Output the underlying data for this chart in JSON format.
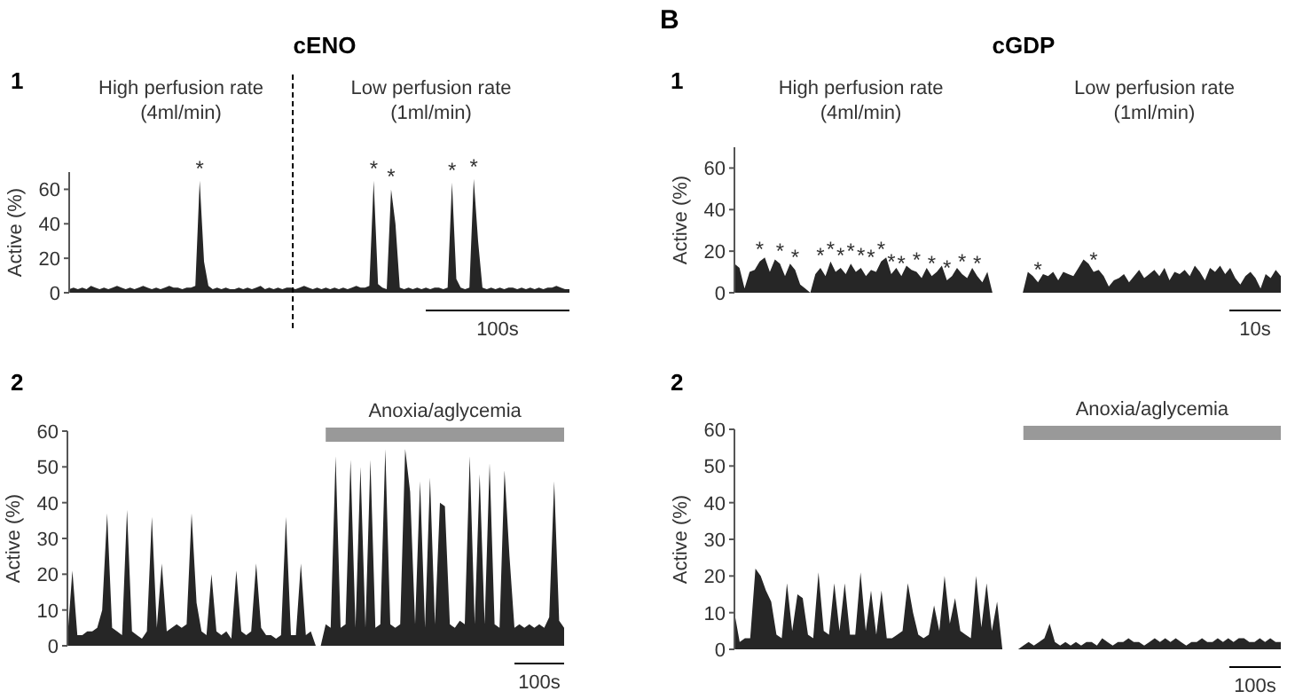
{
  "chart_data": [
    {
      "type": "area",
      "title": "cENO",
      "ylabel": "Active (%)",
      "ylim": [
        0,
        70
      ],
      "yticks": [
        0,
        20,
        40,
        60
      ],
      "tick_labels": "y",
      "categories": [
        null,
        null,
        null,
        null,
        null,
        null,
        null,
        null,
        null,
        null,
        null,
        null,
        null,
        null,
        null,
        null,
        null,
        null,
        null,
        null,
        null,
        null,
        null,
        null,
        null,
        null,
        null,
        null,
        null,
        null,
        null,
        null,
        null,
        null,
        null,
        null,
        null,
        null,
        null,
        null,
        null,
        null,
        null,
        null,
        null,
        null,
        null,
        null,
        null,
        null,
        null,
        null,
        null,
        null,
        null,
        null,
        null,
        null,
        null,
        null,
        null,
        null,
        null,
        null,
        null,
        null,
        null,
        null,
        null,
        null,
        null,
        null,
        null,
        null,
        null,
        null,
        null,
        null,
        null,
        null,
        null,
        null,
        null,
        null,
        null,
        null,
        null,
        null,
        null,
        null,
        null,
        null,
        null,
        null,
        null,
        null,
        null,
        null,
        null,
        null,
        null,
        null,
        null,
        null,
        null,
        null,
        null,
        null,
        null,
        null,
        null,
        null,
        null,
        null,
        null,
        null
      ],
      "series": [
        {
          "color": "#262626",
          "values": [
            2,
            3,
            2,
            3,
            2,
            4,
            3,
            2,
            3,
            2,
            3,
            4,
            3,
            2,
            3,
            2,
            3,
            4,
            3,
            2,
            3,
            2,
            3,
            4,
            3,
            3,
            2,
            3,
            3,
            4,
            65,
            18,
            4,
            2,
            3,
            2,
            3,
            2,
            2,
            3,
            2,
            3,
            2,
            3,
            4,
            2,
            3,
            2,
            3,
            2,
            3,
            3,
            2,
            3,
            4,
            3,
            2,
            3,
            2,
            3,
            2,
            3,
            2,
            3,
            2,
            3,
            4,
            3,
            3,
            4,
            65,
            5,
            3,
            2,
            60,
            40,
            3,
            2,
            3,
            2,
            3,
            2,
            3,
            2,
            3,
            3,
            2,
            3,
            64,
            8,
            3,
            2,
            3,
            66,
            30,
            3,
            2,
            3,
            2,
            3,
            2,
            3,
            3,
            2,
            3,
            2,
            3,
            2,
            3,
            2,
            3,
            3,
            4,
            3,
            2,
            2
          ],
          "value_labels": [
            null,
            null,
            null,
            null,
            null,
            null,
            null,
            null,
            null,
            null,
            null,
            null,
            null,
            null,
            null,
            null,
            null,
            null,
            null,
            null,
            null,
            null,
            null,
            null,
            null,
            null,
            null,
            null,
            null,
            null,
            "*",
            null,
            null,
            null,
            null,
            null,
            null,
            null,
            null,
            null,
            null,
            null,
            null,
            null,
            null,
            null,
            null,
            null,
            null,
            null,
            null,
            null,
            null,
            null,
            null,
            null,
            null,
            null,
            null,
            null,
            null,
            null,
            null,
            null,
            null,
            null,
            null,
            null,
            null,
            null,
            "*",
            null,
            null,
            null,
            "*",
            null,
            null,
            null,
            null,
            null,
            null,
            null,
            null,
            null,
            null,
            null,
            null,
            null,
            "*",
            null,
            null,
            null,
            null,
            "*",
            null,
            null,
            null,
            null,
            null,
            null,
            null,
            null,
            null,
            null,
            null,
            null,
            null,
            null,
            null,
            null,
            null,
            null,
            null,
            null,
            null,
            null
          ]
        }
      ],
      "annotations": [
        "1",
        "High perfusion rate\n(4ml/min)",
        "Low perfusion rate\n(1ml/min)",
        "100s"
      ]
    },
    {
      "type": "area",
      "title": "cGDP",
      "ylabel": "Active (%)",
      "ylim": [
        0,
        70
      ],
      "yticks": [
        0,
        20,
        40,
        60
      ],
      "tick_labels": "y",
      "categories": [
        null,
        null,
        null,
        null,
        null,
        null,
        null,
        null,
        null,
        null,
        null,
        null,
        null,
        null,
        null,
        null,
        null,
        null,
        null,
        null,
        null,
        null,
        null,
        null,
        null,
        null,
        null,
        null,
        null,
        null,
        null,
        null,
        null,
        null,
        null,
        null,
        null,
        null,
        null,
        null,
        null,
        null,
        null,
        null,
        null,
        null,
        null,
        null,
        null,
        null,
        null,
        null,
        null,
        null,
        null,
        null,
        null,
        null,
        null,
        null,
        null,
        null,
        null,
        null,
        null,
        null,
        null,
        null,
        null,
        null,
        null,
        null,
        null,
        null,
        null,
        null,
        null,
        null,
        null,
        null,
        null,
        null,
        null,
        null,
        null,
        null,
        null,
        null,
        null,
        null,
        null,
        null,
        null,
        null,
        null,
        null,
        null,
        null,
        null,
        null,
        null,
        null,
        null,
        null,
        null,
        null,
        null,
        null,
        null
      ],
      "series": [
        {
          "color": "#262626",
          "values": [
            14,
            12,
            2,
            10,
            11,
            15,
            17,
            10,
            16,
            14,
            8,
            14,
            11,
            4,
            2,
            0,
            9,
            12,
            8,
            15,
            10,
            12,
            9,
            14,
            10,
            12,
            8,
            11,
            10,
            15,
            17,
            9,
            12,
            8,
            13,
            11,
            10,
            7,
            12,
            8,
            10,
            13,
            6,
            8,
            12,
            9,
            7,
            12,
            8,
            5,
            10,
            null,
            null,
            null,
            null,
            null,
            null,
            null,
            10,
            8,
            5,
            9,
            8,
            10,
            6,
            10,
            9,
            8,
            12,
            16,
            14,
            10,
            11,
            8,
            3,
            6,
            7,
            9,
            5,
            8,
            11,
            7,
            9,
            11,
            8,
            12,
            6,
            10,
            9,
            11,
            8,
            13,
            10,
            6,
            12,
            10,
            13,
            9,
            12,
            7,
            4,
            8,
            10,
            7,
            2,
            9,
            7,
            11,
            8
          ],
          "value_labels": [
            null,
            null,
            null,
            null,
            null,
            "*",
            null,
            null,
            null,
            "*",
            null,
            null,
            "*",
            null,
            null,
            null,
            null,
            "*",
            null,
            "*",
            null,
            "*",
            null,
            "*",
            null,
            "*",
            null,
            "*",
            null,
            "*",
            null,
            "*",
            null,
            "*",
            null,
            null,
            "*",
            null,
            null,
            "*",
            null,
            null,
            "*",
            null,
            null,
            "*",
            null,
            null,
            "*",
            null,
            null,
            null,
            null,
            null,
            null,
            null,
            null,
            null,
            null,
            null,
            "*",
            null,
            null,
            null,
            null,
            null,
            null,
            null,
            null,
            null,
            null,
            "*",
            null,
            null,
            null,
            null,
            null,
            null,
            null,
            null,
            null,
            null,
            null,
            null,
            null,
            null,
            null,
            null,
            null,
            null,
            null,
            null,
            null,
            null,
            null,
            null,
            null,
            null,
            null,
            null,
            null,
            null,
            null,
            null,
            null,
            null,
            null,
            null,
            null
          ]
        }
      ],
      "annotations": [
        "B",
        "1",
        "High perfusion rate\n(4ml/min)",
        "Low perfusion rate\n(1ml/min)",
        "10s"
      ]
    },
    {
      "type": "area",
      "ylabel": "Active (%)",
      "ylim": [
        0,
        60
      ],
      "yticks": [
        0,
        10,
        20,
        30,
        40,
        50,
        60
      ],
      "tick_labels": "y",
      "categories": [
        null,
        null,
        null,
        null,
        null,
        null,
        null,
        null,
        null,
        null,
        null,
        null,
        null,
        null,
        null,
        null,
        null,
        null,
        null,
        null,
        null,
        null,
        null,
        null,
        null,
        null,
        null,
        null,
        null,
        null,
        null,
        null,
        null,
        null,
        null,
        null,
        null,
        null,
        null,
        null,
        null,
        null,
        null,
        null,
        null,
        null,
        null,
        null,
        null,
        null,
        null,
        null,
        null,
        null,
        null,
        null,
        null,
        null,
        null,
        null,
        null,
        null,
        null,
        null,
        null,
        null,
        null,
        null,
        null,
        null,
        null,
        null,
        null,
        null,
        null,
        null,
        null,
        null,
        null,
        null,
        null,
        null,
        null,
        null,
        null,
        null,
        null,
        null,
        null,
        null,
        null,
        null,
        null,
        null,
        null,
        null,
        null,
        null,
        null,
        null,
        null
      ],
      "series": [
        {
          "color": "#262626",
          "values": [
            2,
            21,
            3,
            3,
            4,
            4,
            5,
            10,
            37,
            5,
            4,
            3,
            38,
            4,
            3,
            2,
            4,
            36,
            5,
            23,
            4,
            5,
            6,
            5,
            6,
            37,
            12,
            4,
            3,
            20,
            4,
            3,
            4,
            2,
            21,
            4,
            3,
            4,
            23,
            5,
            3,
            3,
            2,
            3,
            36,
            3,
            3,
            23,
            3,
            4,
            null,
            null,
            6,
            5,
            53,
            5,
            6,
            52,
            5,
            50,
            5,
            52,
            5,
            6,
            55,
            6,
            5,
            6,
            55,
            43,
            6,
            46,
            5,
            47,
            6,
            40,
            39,
            6,
            5,
            7,
            6,
            53,
            6,
            48,
            6,
            51,
            6,
            5,
            49,
            25,
            5,
            6,
            5,
            6,
            5,
            6,
            5,
            8,
            46,
            7,
            5
          ]
        }
      ],
      "annotations": [
        "2",
        "Anoxia/aglycemia",
        "100s"
      ]
    },
    {
      "type": "area",
      "ylabel": "Active (%)",
      "ylim": [
        0,
        60
      ],
      "yticks": [
        0,
        10,
        20,
        30,
        40,
        50,
        60
      ],
      "tick_labels": "y",
      "categories": [
        null,
        null,
        null,
        null,
        null,
        null,
        null,
        null,
        null,
        null,
        null,
        null,
        null,
        null,
        null,
        null,
        null,
        null,
        null,
        null,
        null,
        null,
        null,
        null,
        null,
        null,
        null,
        null,
        null,
        null,
        null,
        null,
        null,
        null,
        null,
        null,
        null,
        null,
        null,
        null,
        null,
        null,
        null,
        null,
        null,
        null,
        null,
        null,
        null,
        null,
        null,
        null,
        null,
        null,
        null,
        null,
        null,
        null,
        null,
        null,
        null,
        null,
        null,
        null,
        null,
        null,
        null,
        null,
        null,
        null,
        null,
        null,
        null,
        null,
        null,
        null,
        null,
        null,
        null,
        null,
        null,
        null,
        null,
        null,
        null,
        null,
        null,
        null,
        null,
        null,
        null,
        null,
        null,
        null,
        null,
        null,
        null,
        null,
        null,
        null,
        null,
        null,
        null,
        null,
        null
      ],
      "series": [
        {
          "color": "#262626",
          "values": [
            10,
            2,
            3,
            3,
            22,
            20,
            16,
            13,
            4,
            3,
            18,
            5,
            15,
            14,
            4,
            3,
            21,
            5,
            4,
            18,
            5,
            18,
            4,
            4,
            21,
            5,
            16,
            4,
            16,
            3,
            3,
            4,
            5,
            18,
            10,
            4,
            3,
            4,
            12,
            5,
            20,
            7,
            14,
            5,
            4,
            3,
            20,
            6,
            18,
            5,
            13,
            null,
            null,
            null,
            null,
            1,
            2,
            1,
            2,
            3,
            7,
            2,
            1,
            2,
            1,
            2,
            1,
            2,
            2,
            1,
            3,
            2,
            1,
            2,
            2,
            3,
            2,
            2,
            1,
            2,
            3,
            2,
            3,
            2,
            3,
            2,
            1,
            2,
            2,
            3,
            2,
            2,
            3,
            2,
            3,
            2,
            3,
            3,
            2,
            2,
            3,
            2,
            3,
            2,
            2
          ]
        }
      ],
      "annotations": [
        "2",
        "Anoxia/aglycemia",
        "100s"
      ]
    }
  ]
}
